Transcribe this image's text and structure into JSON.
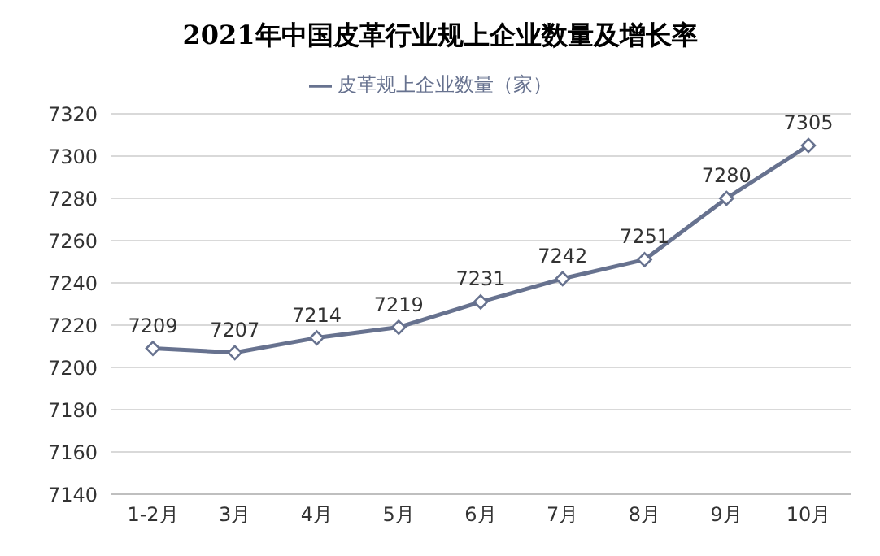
{
  "chart_data": {
    "type": "line",
    "title": "2021年中国皮革行业规上企业数量及增长率",
    "categories": [
      "1-2月",
      "3月",
      "4月",
      "5月",
      "6月",
      "7月",
      "8月",
      "9月",
      "10月"
    ],
    "series": [
      {
        "name": "皮革规上企业数量（家）",
        "color": "#67728f",
        "values": [
          7209,
          7207,
          7214,
          7219,
          7231,
          7242,
          7251,
          7280,
          7305
        ]
      }
    ],
    "ylim": [
      7140,
      7320
    ],
    "yticks": [
      7140,
      7160,
      7180,
      7200,
      7220,
      7240,
      7260,
      7280,
      7300,
      7320
    ],
    "grid": "y",
    "legend": "top",
    "marker": "diamond",
    "line_style": "solid",
    "data_labels": true
  }
}
